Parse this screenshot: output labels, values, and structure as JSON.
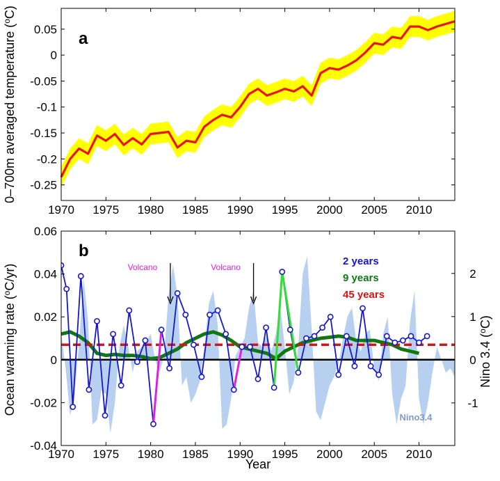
{
  "chart_data": [
    {
      "type": "area",
      "panel_label": "a",
      "xlabel": "",
      "ylabel": "0–700m averaged temperature (",
      "ylabel_unit_sup": "o",
      "ylabel_unit_end": "C)",
      "xlim": [
        1970,
        2014
      ],
      "ylim": [
        -0.28,
        0.09
      ],
      "xticks": [
        1970,
        1975,
        1980,
        1985,
        1990,
        1995,
        2000,
        2005,
        2010
      ],
      "yticks": [
        -0.25,
        -0.2,
        -0.15,
        -0.1,
        -0.05,
        0,
        0.05
      ],
      "ytick_labels": [
        "-0.25",
        "-0.2",
        "-0.15",
        "-0.1",
        "-0.05",
        "0",
        "0.05"
      ],
      "series": [
        {
          "name": "0-700m temperature",
          "color": "#ee1111",
          "band_color": "#ffff00",
          "band_halfwidth": 0.02,
          "x": [
            1970,
            1971,
            1972,
            1973,
            1974,
            1975,
            1976,
            1977,
            1978,
            1979,
            1980,
            1981,
            1982,
            1983,
            1984,
            1985,
            1986,
            1987,
            1988,
            1989,
            1990,
            1991,
            1992,
            1993,
            1994,
            1995,
            1996,
            1997,
            1998,
            1999,
            2000,
            2001,
            2002,
            2003,
            2004,
            2005,
            2006,
            2007,
            2008,
            2009,
            2010,
            2011,
            2012,
            2013,
            2014
          ],
          "y": [
            -0.235,
            -0.2,
            -0.18,
            -0.19,
            -0.155,
            -0.165,
            -0.152,
            -0.173,
            -0.16,
            -0.172,
            -0.152,
            -0.15,
            -0.148,
            -0.178,
            -0.165,
            -0.168,
            -0.138,
            -0.125,
            -0.115,
            -0.12,
            -0.1,
            -0.075,
            -0.065,
            -0.078,
            -0.072,
            -0.065,
            -0.07,
            -0.06,
            -0.078,
            -0.035,
            -0.025,
            -0.028,
            -0.02,
            -0.01,
            0.005,
            0.023,
            0.02,
            0.035,
            0.032,
            0.055,
            0.055,
            0.048,
            0.055,
            0.06,
            0.065
          ]
        }
      ]
    },
    {
      "type": "line",
      "panel_label": "b",
      "xlabel": "Year",
      "ylabel": "Ocean warming rate (",
      "ylabel_unit_sup": "o",
      "ylabel_unit_end": "C/yr)",
      "y2label": "Nino 3.4 (",
      "y2label_unit_sup": "o",
      "y2label_unit_end": "C)",
      "xlim": [
        1970,
        2014
      ],
      "ylim": [
        -0.04,
        0.06
      ],
      "y2lim": [
        -2,
        3
      ],
      "xticks": [
        1970,
        1975,
        1980,
        1985,
        1990,
        1995,
        2000,
        2005,
        2010
      ],
      "yticks": [
        -0.04,
        -0.02,
        0,
        0.02,
        0.04,
        0.06
      ],
      "ytick_labels": [
        "-0.04",
        "-0.02",
        "0",
        "0.02",
        "0.04",
        "0.06"
      ],
      "y2ticks": [
        -1,
        0,
        1,
        2
      ],
      "y2tick_labels": [
        "-1",
        "0",
        "1",
        "2"
      ],
      "legend": [
        {
          "label": "2 years",
          "color": "#1515d0"
        },
        {
          "label": "9 years",
          "color": "#117711"
        },
        {
          "label": "45 years",
          "color": "#dd1111"
        }
      ],
      "annotations": [
        {
          "text": "Volcano",
          "year": 1982.2
        },
        {
          "text": "Volcano",
          "year": 1991.5
        }
      ],
      "nino_label": "Nino3.4",
      "series": [
        {
          "name": "2 years",
          "color": "#1515d0",
          "x": [
            1970,
            1970.6,
            1971.3,
            1972.2,
            1973.1,
            1974,
            1974.9,
            1975.8,
            1976.7,
            1977.6,
            1978.5,
            1979.4,
            1980.3,
            1981.2,
            1982.1,
            1983,
            1983.9,
            1984.8,
            1985.7,
            1986.6,
            1987.5,
            1988.4,
            1989.3,
            1990.2,
            1991.1,
            1992,
            1992.9,
            1993.8,
            1994.7,
            1995.6,
            1996.5,
            1997.4,
            1998.3,
            1999.2,
            2000.1,
            2001,
            2001.9,
            2002.8,
            2003.7,
            2004.6,
            2005.5,
            2006.4,
            2007.3,
            2008.2,
            2009.1,
            2010,
            2010.9
          ],
          "y": [
            0.044,
            0.033,
            -0.022,
            0.039,
            -0.014,
            0.018,
            -0.026,
            0.012,
            -0.012,
            0.023,
            -0.001,
            0.009,
            -0.03,
            0.014,
            -0.004,
            0.031,
            0.021,
            0.007,
            -0.008,
            0.021,
            0.023,
            0.012,
            -0.014,
            0.006,
            0.006,
            -0.009,
            0.015,
            -0.013,
            0.041,
            0.014,
            -0.006,
            0.01,
            0.011,
            0.015,
            0.02,
            -0.007,
            0.011,
            -0.003,
            0.024,
            -0.003,
            -0.007,
            0.011,
            0.008,
            0.009,
            0.011,
            0.008,
            0.011
          ]
        },
        {
          "name": "9 years",
          "color": "#117711",
          "x": [
            1970,
            1971,
            1972,
            1973,
            1974,
            1975,
            1976,
            1977,
            1978,
            1979,
            1980,
            1981,
            1982,
            1983,
            1984,
            1985,
            1986,
            1987,
            1988,
            1989,
            1990,
            1991,
            1992,
            1993,
            1994,
            1995,
            1996,
            1997,
            1998,
            1999,
            2000,
            2001,
            2002,
            2003,
            2004,
            2005,
            2006,
            2007,
            2008,
            2009,
            2010
          ],
          "y": [
            0.012,
            0.013,
            0.011,
            0.008,
            0.003,
            0.002,
            0.0025,
            0.002,
            0.002,
            0.0015,
            0.0005,
            0.001,
            0.003,
            0.005,
            0.008,
            0.01,
            0.012,
            0.013,
            0.0115,
            0.009,
            0.006,
            0.005,
            0.004,
            0.003,
            0.0005,
            0.004,
            0.006,
            0.008,
            0.009,
            0.01,
            0.0105,
            0.011,
            0.0105,
            0.009,
            0.009,
            0.009,
            0.008,
            0.007,
            0.005,
            0.004,
            0.003
          ]
        },
        {
          "name": "45 years",
          "color": "#dd1111",
          "x": [
            1970,
            2014
          ],
          "y": [
            0.007,
            0.007
          ]
        },
        {
          "name": "Nino3.4",
          "color": "#b8d0f0",
          "axis": "y2",
          "x": [
            1970,
            1970.5,
            1971,
            1971.5,
            1972,
            1972.5,
            1973,
            1973.5,
            1974,
            1974.5,
            1975,
            1975.5,
            1976,
            1976.5,
            1977,
            1977.5,
            1978,
            1978.5,
            1979,
            1979.5,
            1980,
            1980.5,
            1981,
            1981.5,
            1982,
            1982.5,
            1983,
            1983.5,
            1984,
            1984.5,
            1985,
            1985.5,
            1986,
            1986.5,
            1987,
            1987.5,
            1988,
            1988.5,
            1989,
            1989.5,
            1990,
            1990.5,
            1991,
            1991.5,
            1992,
            1992.5,
            1993,
            1993.5,
            1994,
            1994.5,
            1995,
            1995.5,
            1996,
            1996.5,
            1997,
            1997.5,
            1998,
            1998.5,
            1999,
            1999.5,
            2000,
            2000.5,
            2001,
            2001.5,
            2002,
            2002.5,
            2003,
            2003.5,
            2004,
            2004.5,
            2005,
            2005.5,
            2006,
            2006.5,
            2007,
            2007.5,
            2008,
            2008.5,
            2009,
            2009.5,
            2010,
            2010.5,
            2011,
            2011.5,
            2012,
            2012.5,
            2013,
            2013.5,
            2014
          ],
          "y": [
            0.6,
            -0.2,
            -1.3,
            -0.8,
            0.4,
            1.9,
            0.9,
            -1.5,
            -1.4,
            -0.7,
            -0.8,
            -1.7,
            -1.0,
            0.3,
            0.8,
            0.3,
            -0.3,
            0.2,
            0.3,
            0.4,
            0.6,
            0.0,
            -0.3,
            0.1,
            1.5,
            2.2,
            1.5,
            -0.6,
            -0.4,
            -1.0,
            -0.8,
            -0.5,
            0.3,
            1.3,
            1.6,
            0.8,
            -1.6,
            -1.5,
            -0.9,
            0.1,
            0.3,
            0.5,
            1.2,
            1.6,
            0.4,
            0.3,
            0.6,
            0.2,
            0.6,
            1.2,
            0.3,
            -0.8,
            -0.5,
            0.3,
            2.0,
            2.4,
            0.7,
            -1.2,
            -1.4,
            -1.0,
            -0.6,
            -0.4,
            -0.1,
            0.5,
            1.0,
            1.2,
            0.4,
            0.2,
            0.6,
            0.7,
            -0.2,
            -0.5,
            0.6,
            1.0,
            -0.8,
            -1.5,
            -0.9,
            -0.6,
            0.9,
            1.6,
            -0.9,
            -1.5,
            -1.0,
            -0.3,
            0.3,
            0.0,
            -0.3,
            -0.2,
            -0.4
          ]
        }
      ]
    }
  ]
}
